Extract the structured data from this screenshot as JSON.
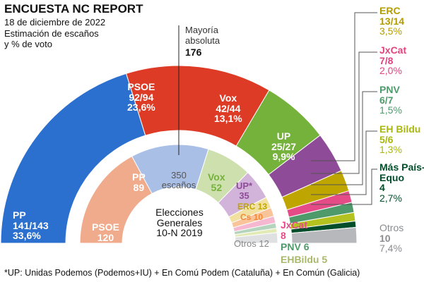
{
  "chart_data": {
    "type": "hemicycle",
    "title": "ENCUESTA NC REPORT",
    "subtitle": "18 de diciembre de 2022",
    "description": "Estimación de escaños\ny % de voto",
    "majority": {
      "label": "Mayoría absoluta",
      "label1": "Mayoría",
      "label2": "absoluta",
      "value": "176"
    },
    "total_label": {
      "value": "350",
      "unit": "escaños"
    },
    "inner_title": {
      "line1": "Elecciones",
      "line2": "Generales",
      "line3": "10-N 2019"
    },
    "footnote": "*UP: Unidas Podemos (Podemos+IU) + En Comú Podem (Cataluña) + En Común (Galicia)",
    "survey": [
      {
        "party": "PP",
        "seats": "141/143",
        "pct": "33,6%",
        "mid": 142,
        "color": "#2b6fcf"
      },
      {
        "party": "PSOE",
        "seats": "92/94",
        "pct": "23,6%",
        "mid": 93,
        "color": "#de3b26"
      },
      {
        "party": "Vox",
        "seats": "42/44",
        "pct": "13,1%",
        "mid": 43,
        "color": "#75b23b"
      },
      {
        "party": "UP",
        "seats": "25/27",
        "pct": "9,9%",
        "mid": 26,
        "color": "#8e4b98"
      },
      {
        "party": "ERC",
        "seats": "13/14",
        "pct": "3,5%",
        "mid": 13.5,
        "color": "#bfa500"
      },
      {
        "party": "JxCat",
        "seats": "7/8",
        "pct": "2,0%",
        "mid": 7.5,
        "color": "#e54b87"
      },
      {
        "party": "PNV",
        "seats": "6/7",
        "pct": "1,5%",
        "mid": 6.5,
        "color": "#4e9a6b"
      },
      {
        "party": "EH Bildu",
        "seats": "5/6",
        "pct": "1,3%",
        "mid": 5.5,
        "color": "#b3c21f"
      },
      {
        "party": "Más País-Equo",
        "party1": "Más País-",
        "party2": "Equo",
        "seats": "4",
        "pct": "2,7%",
        "mid": 4,
        "color": "#024e2b"
      },
      {
        "party": "Otros",
        "seats": "10",
        "pct": "7,4%",
        "mid": 10,
        "color": "#b6b8bb"
      }
    ],
    "election_2019": [
      {
        "party": "PSOE",
        "seats": 120,
        "color": "#f0ab8c"
      },
      {
        "party": "PP",
        "seats": 89,
        "color": "#a9bfe6"
      },
      {
        "party": "Vox",
        "seats": 52,
        "color": "#cde0ae"
      },
      {
        "party": "UP*",
        "seats": 35,
        "color": "#d2b3da"
      },
      {
        "party": "ERC",
        "seats": 13,
        "color": "#f1e0a0"
      },
      {
        "party": "Cs",
        "seats": 10,
        "color": "#f9c49a"
      },
      {
        "party": "JxCat",
        "seats": 8,
        "color": "#f5b8d0"
      },
      {
        "party": "PNV",
        "seats": 6,
        "color": "#b5d4bd"
      },
      {
        "party": "EHBildu",
        "seats": 5,
        "color": "#e2eab5"
      },
      {
        "party": "Otros",
        "seats": 12,
        "color": "#dfe0e2"
      }
    ]
  }
}
